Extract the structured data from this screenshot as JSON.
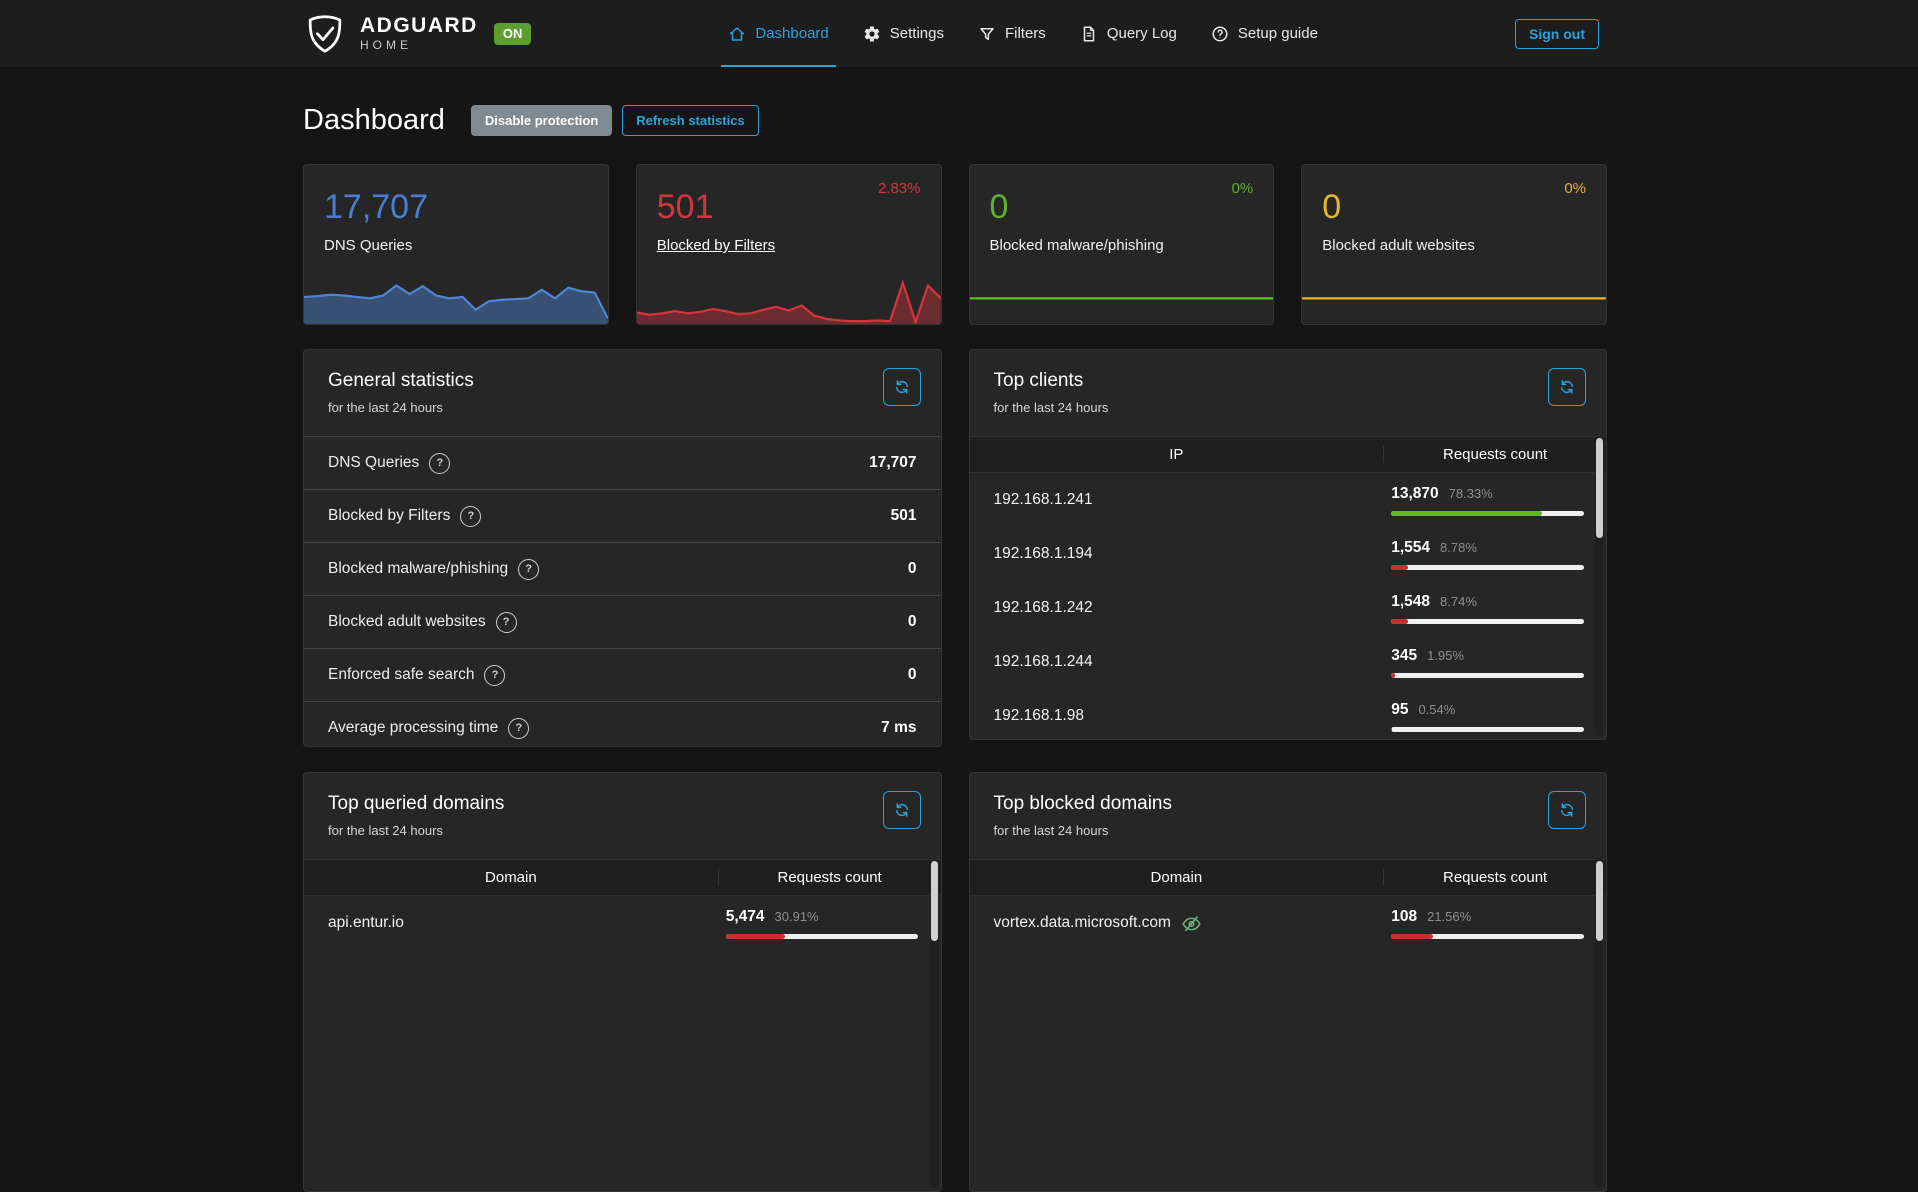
{
  "navbar": {
    "brand": {
      "name": "ADGUARD",
      "sub": "HOME",
      "status_badge": "ON"
    },
    "items": [
      {
        "id": "dashboard",
        "label": "Dashboard",
        "icon": "home-icon",
        "active": true
      },
      {
        "id": "settings",
        "label": "Settings",
        "icon": "gear-icon",
        "active": false
      },
      {
        "id": "filters",
        "label": "Filters",
        "icon": "funnel-icon",
        "active": false
      },
      {
        "id": "query-log",
        "label": "Query Log",
        "icon": "document-icon",
        "active": false
      },
      {
        "id": "setup-guide",
        "label": "Setup guide",
        "icon": "question-icon",
        "active": false
      }
    ],
    "sign_out_label": "Sign out"
  },
  "page": {
    "title": "Dashboard",
    "disable_protection_label": "Disable protection",
    "refresh_statistics_label": "Refresh statistics"
  },
  "colors": {
    "accent_blue": "#2aa2dc",
    "page_bg": "#151516",
    "panel_bg": "#262626",
    "bar_track": "#f0f0f0",
    "badge_green": "#5d9e31"
  },
  "stat_cards": [
    {
      "id": "dns-queries",
      "value": "17,707",
      "label": "DNS Queries",
      "percent": null,
      "number_color": "#4a7ed0",
      "line_color": "#4e86d4",
      "fill_opacity": 0.45,
      "link": false,
      "points": [
        21,
        20.5,
        19.5,
        20,
        21,
        22,
        20,
        13,
        19,
        13.5,
        20,
        22,
        21,
        30,
        24,
        23,
        22.5,
        22,
        16,
        22,
        14.5,
        17,
        18,
        36
      ]
    },
    {
      "id": "blocked-by-filters",
      "value": "501",
      "label": "Blocked by Filters",
      "percent": "2.83%",
      "number_color": "#d2363e",
      "line_color": "#d6343c",
      "fill_opacity": 0.4,
      "link": true,
      "points": [
        32,
        33.5,
        32.5,
        31,
        32.5,
        31.5,
        29.5,
        31,
        33,
        32.5,
        30,
        28,
        30.5,
        27,
        34,
        36.5,
        37.5,
        38,
        38,
        37.5,
        38,
        11,
        38.5,
        13,
        22
      ]
    },
    {
      "id": "blocked-malware-phishing",
      "value": "0",
      "label": "Blocked malware/phishing",
      "percent": "0%",
      "number_color": "#5eb32e",
      "line_color": "#5bc11f",
      "fill_opacity": 0,
      "link": false,
      "points": [
        22,
        22
      ]
    },
    {
      "id": "blocked-adult-websites",
      "value": "0",
      "label": "Blocked adult websites",
      "percent": "0%",
      "number_color": "#e5b52e",
      "line_color": "#eab72e",
      "fill_opacity": 0,
      "link": false,
      "points": [
        22,
        22
      ]
    }
  ],
  "general_statistics": {
    "title": "General statistics",
    "subtitle": "for the last 24 hours",
    "rows": [
      {
        "label": "DNS Queries",
        "value": "17,707"
      },
      {
        "label": "Blocked by Filters",
        "value": "501"
      },
      {
        "label": "Blocked malware/phishing",
        "value": "0"
      },
      {
        "label": "Blocked adult websites",
        "value": "0"
      },
      {
        "label": "Enforced safe search",
        "value": "0"
      },
      {
        "label": "Average processing time",
        "value": "7 ms"
      }
    ]
  },
  "top_clients": {
    "title": "Top clients",
    "subtitle": "for the last 24 hours",
    "columns": [
      "IP",
      "Requests count"
    ],
    "rows": [
      {
        "ip": "192.168.1.241",
        "count": "13,870",
        "percent": "78.33%",
        "bar_pct": 78.33,
        "bar_color": "#5bb829"
      },
      {
        "ip": "192.168.1.194",
        "count": "1,554",
        "percent": "8.78%",
        "bar_pct": 8.78,
        "bar_color": "#c8302c"
      },
      {
        "ip": "192.168.1.242",
        "count": "1,548",
        "percent": "8.74%",
        "bar_pct": 8.74,
        "bar_color": "#c8302c"
      },
      {
        "ip": "192.168.1.244",
        "count": "345",
        "percent": "1.95%",
        "bar_pct": 1.95,
        "bar_color": "#c8302c"
      },
      {
        "ip": "192.168.1.98",
        "count": "95",
        "percent": "0.54%",
        "bar_pct": 0.54,
        "bar_color": "#c8302c"
      }
    ]
  },
  "top_queried_domains": {
    "title": "Top queried domains",
    "subtitle": "for the last 24 hours",
    "columns": [
      "Domain",
      "Requests count"
    ],
    "rows": [
      {
        "domain": "api.entur.io",
        "icon": null,
        "count": "5,474",
        "percent": "30.91%",
        "bar_pct": 30.91,
        "bar_color": "#c8302c"
      }
    ]
  },
  "top_blocked_domains": {
    "title": "Top blocked domains",
    "subtitle": "for the last 24 hours",
    "columns": [
      "Domain",
      "Requests count"
    ],
    "rows": [
      {
        "domain": "vortex.data.microsoft.com",
        "icon": "eye-off-icon",
        "count": "108",
        "percent": "21.56%",
        "bar_pct": 21.56,
        "bar_color": "#c8302c"
      }
    ]
  }
}
